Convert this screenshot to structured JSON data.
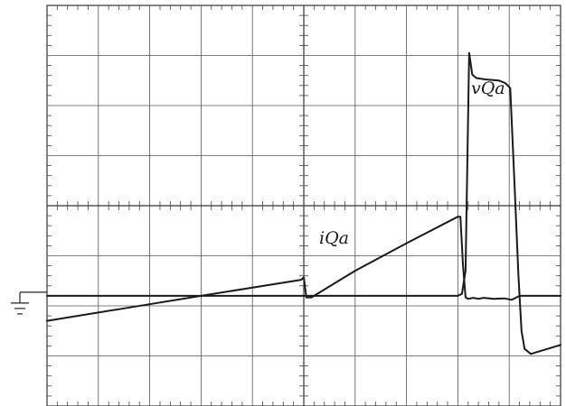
{
  "chart_data": {
    "type": "line",
    "grid": true,
    "divisions": {
      "x": 10,
      "y": 8
    },
    "xlim": [
      0,
      10
    ],
    "ylim": [
      -4,
      4
    ],
    "ground_reference_level": -1.8,
    "series": [
      {
        "name": "vQa",
        "points": [
          [
            0,
            -1.8
          ],
          [
            8.0,
            -1.8
          ],
          [
            8.08,
            -1.76
          ],
          [
            8.15,
            -1.3
          ],
          [
            8.22,
            3.05
          ],
          [
            8.28,
            2.62
          ],
          [
            8.36,
            2.55
          ],
          [
            8.55,
            2.52
          ],
          [
            8.8,
            2.5
          ],
          [
            8.92,
            2.45
          ],
          [
            9.02,
            2.35
          ],
          [
            9.1,
            0.5
          ],
          [
            9.18,
            -1.4
          ],
          [
            9.24,
            -2.5
          ],
          [
            9.3,
            -2.86
          ],
          [
            9.42,
            -2.96
          ],
          [
            9.55,
            -2.92
          ],
          [
            10,
            -2.78
          ]
        ]
      },
      {
        "name": "iQa",
        "points": [
          [
            0,
            -2.3
          ],
          [
            1.5,
            -2.05
          ],
          [
            3.0,
            -1.8
          ],
          [
            4.95,
            -1.48
          ],
          [
            5.0,
            -1.43
          ],
          [
            5.05,
            -1.83
          ],
          [
            5.15,
            -1.83
          ],
          [
            6.0,
            -1.3
          ],
          [
            7.0,
            -0.75
          ],
          [
            8.0,
            -0.22
          ],
          [
            8.05,
            -0.22
          ],
          [
            8.1,
            -1.2
          ],
          [
            8.15,
            -1.83
          ],
          [
            8.2,
            -1.86
          ],
          [
            8.3,
            -1.84
          ],
          [
            8.4,
            -1.86
          ],
          [
            8.5,
            -1.84
          ],
          [
            8.7,
            -1.86
          ],
          [
            8.9,
            -1.85
          ],
          [
            9.05,
            -1.88
          ],
          [
            9.2,
            -1.8
          ],
          [
            10,
            -1.8
          ]
        ]
      }
    ]
  },
  "labels": {
    "vQa": "vQa",
    "iQa": "iQa"
  }
}
